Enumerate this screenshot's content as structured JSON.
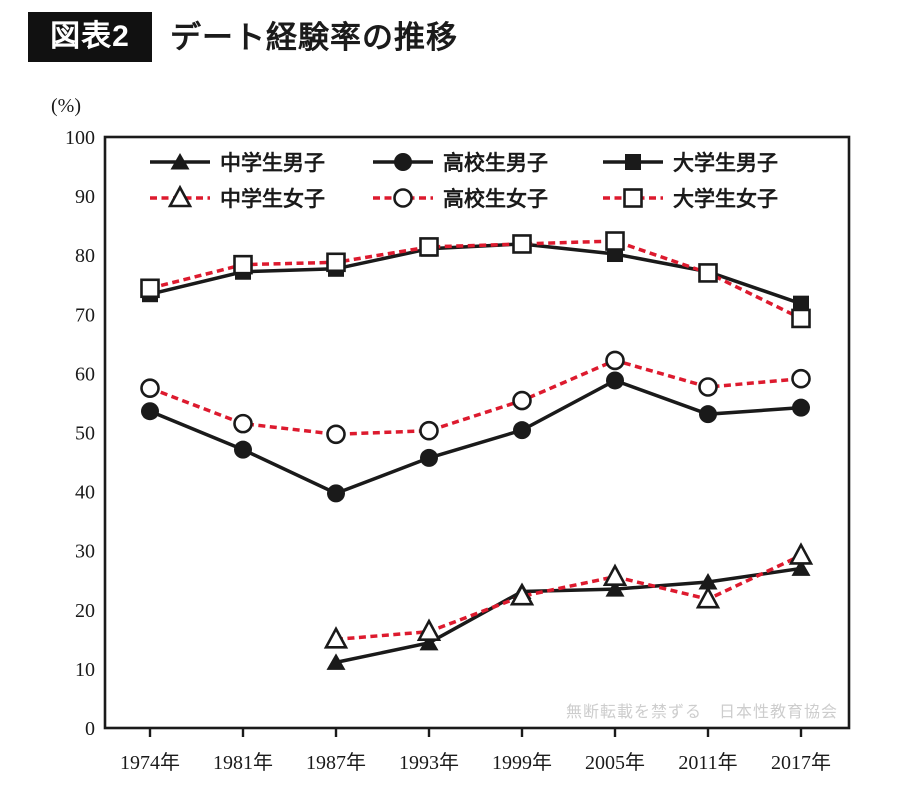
{
  "header": {
    "badge": "図表2",
    "title": "デート経験率の推移"
  },
  "colors": {
    "ink": "#1a1a1a",
    "accent_red": "#dd1a2e",
    "watermark_gray": "#cdcdcd"
  },
  "chart_data": {
    "type": "line",
    "title": "デート経験率の推移",
    "unit_label": "(%)",
    "categories": [
      "1974年",
      "1981年",
      "1987年",
      "1993年",
      "1999年",
      "2005年",
      "2011年",
      "2017年"
    ],
    "y_ticks": [
      100,
      90,
      80,
      70,
      60,
      50,
      40,
      30,
      20,
      10,
      0
    ],
    "ylim": [
      0,
      100
    ],
    "grid": false,
    "legend_position": "top-inside",
    "series": [
      {
        "name": "中学生男子",
        "line": "solid",
        "marker": "triangle",
        "fill": "filled",
        "color": "#1a1a1a",
        "values": [
          null,
          null,
          11.1,
          14.4,
          23.1,
          23.5,
          24.7,
          27.0
        ]
      },
      {
        "name": "高校生男子",
        "line": "solid",
        "marker": "circle",
        "fill": "filled",
        "color": "#1a1a1a",
        "values": [
          53.6,
          47.1,
          39.7,
          45.7,
          50.4,
          58.8,
          53.1,
          54.2
        ]
      },
      {
        "name": "大学生男子",
        "line": "solid",
        "marker": "square",
        "fill": "filled",
        "color": "#1a1a1a",
        "values": [
          73.4,
          77.2,
          77.7,
          81.1,
          81.9,
          80.2,
          77.2,
          71.8
        ]
      },
      {
        "name": "中学生女子",
        "line": "dashed",
        "marker": "triangle",
        "fill": "open",
        "color": "#dd1a2e",
        "values": [
          null,
          null,
          15.0,
          16.3,
          22.3,
          25.6,
          21.8,
          29.2
        ]
      },
      {
        "name": "高校生女子",
        "line": "dashed",
        "marker": "circle",
        "fill": "open",
        "color": "#dd1a2e",
        "values": [
          57.5,
          51.5,
          49.7,
          50.3,
          55.4,
          62.2,
          57.7,
          59.1
        ]
      },
      {
        "name": "大学生女子",
        "line": "dashed",
        "marker": "square",
        "fill": "open",
        "color": "#dd1a2e",
        "values": [
          74.4,
          78.4,
          78.8,
          81.4,
          81.9,
          82.4,
          77.0,
          69.3
        ]
      }
    ],
    "watermark": "無断転載を禁ずる　日本性教育協会"
  }
}
